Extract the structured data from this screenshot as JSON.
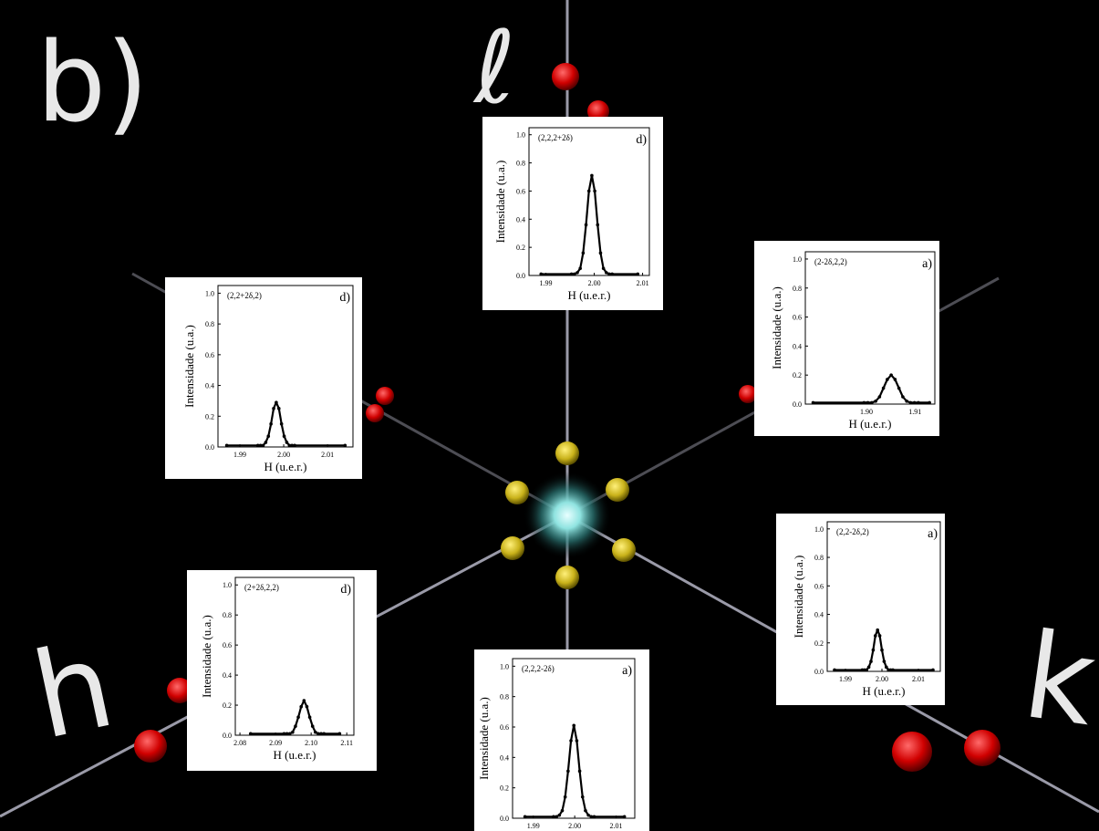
{
  "panel_label": "b)",
  "axis_labels": {
    "l": "ℓ",
    "h": "h",
    "k": "k"
  },
  "chart_data": [
    {
      "type": "line",
      "title": "(2,2,2+2δ)",
      "corner_label": "d)",
      "xlabel": "H (u.e.r.)",
      "ylabel": "Intensidade (u.a.)",
      "color": "#000000",
      "x": [
        1.989,
        1.9953,
        1.9959,
        1.9965,
        1.9971,
        1.9977,
        1.9983,
        1.9989,
        1.9995,
        2.0001,
        2.0007,
        2.0013,
        2.0019,
        2.0025,
        2.0031,
        2.0037,
        2.009
      ],
      "values": [
        0.01,
        0.01,
        0.01,
        0.02,
        0.05,
        0.16,
        0.36,
        0.6,
        0.71,
        0.6,
        0.36,
        0.16,
        0.05,
        0.02,
        0.01,
        0.01,
        0.01
      ],
      "xlim": [
        1.9865,
        2.0114
      ],
      "ylim": [
        0,
        1.05
      ],
      "xticks": [
        1.99,
        {
          "value": 2,
          "label": "2.00"
        },
        2.01
      ],
      "yticks": [
        {
          "value": 0,
          "label": "0.0"
        },
        0.2,
        0.4,
        0.6,
        0.8,
        {
          "value": 1,
          "label": "1.0"
        }
      ]
    },
    {
      "type": "line",
      "title": "(2-2δ,2,2)",
      "corner_label": "a)",
      "xlabel": "H (u.e.r.)",
      "ylabel": "Intensidade (u.a.)",
      "color": "#000000",
      "x": [
        1.889,
        1.8995,
        1.9003,
        1.9011,
        1.9019,
        1.9027,
        1.9035,
        1.9043,
        1.9051,
        1.9059,
        1.9067,
        1.9075,
        1.9083,
        1.9091,
        1.9099,
        1.9107,
        1.913
      ],
      "values": [
        0.01,
        0.01,
        0.01,
        0.01,
        0.02,
        0.05,
        0.11,
        0.17,
        0.2,
        0.17,
        0.11,
        0.05,
        0.02,
        0.01,
        0.01,
        0.01,
        0.01
      ],
      "xlim": [
        1.8874,
        1.9141
      ],
      "ylim": [
        0,
        1.05
      ],
      "xticks": [
        {
          "value": 1.9,
          "label": "1.90"
        },
        1.91
      ],
      "yticks": [
        {
          "value": 0,
          "label": "0.0"
        },
        0.2,
        0.4,
        0.6,
        0.8,
        {
          "value": 1,
          "label": "1.0"
        }
      ]
    },
    {
      "type": "line",
      "title": "(2,2+2δ,2)",
      "corner_label": "d)",
      "xlabel": "H (u.e.r.)",
      "ylabel": "Intensidade (u.a.)",
      "color": "#000000",
      "x": [
        1.987,
        1.9941,
        1.9947,
        1.9953,
        1.9959,
        1.9965,
        1.9971,
        1.9977,
        1.9983,
        1.9989,
        1.9995,
        2.0001,
        2.0007,
        2.0013,
        2.0019,
        2.0025,
        2.014
      ],
      "values": [
        0.01,
        0.01,
        0.01,
        0.01,
        0.03,
        0.07,
        0.15,
        0.25,
        0.29,
        0.25,
        0.15,
        0.07,
        0.03,
        0.01,
        0.01,
        0.01,
        0.01
      ],
      "xlim": [
        1.985,
        2.0158
      ],
      "ylim": [
        0,
        1.05
      ],
      "xticks": [
        1.99,
        {
          "value": 2,
          "label": "2.00"
        },
        2.01
      ],
      "yticks": [
        {
          "value": 0,
          "label": "0.0"
        },
        0.2,
        0.4,
        0.6,
        0.8,
        {
          "value": 1,
          "label": "1.0"
        }
      ]
    },
    {
      "type": "line",
      "title": "(2,2-2δ,2)",
      "corner_label": "a)",
      "xlabel": "H (u.e.r.)",
      "ylabel": "Intensidade (u.a.)",
      "color": "#000000",
      "x": [
        1.987,
        1.9946,
        1.9952,
        1.9958,
        1.9964,
        1.997,
        1.9976,
        1.9982,
        1.9988,
        1.9994,
        2.0,
        2.0006,
        2.0012,
        2.0018,
        2.0024,
        2.003,
        2.014
      ],
      "values": [
        0.01,
        0.01,
        0.01,
        0.01,
        0.03,
        0.07,
        0.15,
        0.25,
        0.29,
        0.25,
        0.15,
        0.07,
        0.03,
        0.01,
        0.01,
        0.01,
        0.01
      ],
      "xlim": [
        1.985,
        2.016
      ],
      "ylim": [
        0,
        1.05
      ],
      "xticks": [
        1.99,
        {
          "value": 2,
          "label": "2.00"
        },
        2.01
      ],
      "yticks": [
        {
          "value": 0,
          "label": "0.0"
        },
        0.2,
        0.4,
        0.6,
        0.8,
        {
          "value": 1,
          "label": "1.0"
        }
      ]
    },
    {
      "type": "line",
      "title": "(2+2δ,2,2)",
      "corner_label": "d)",
      "xlabel": "H (u.e.r.)",
      "ylabel": "Intensidade (u.a.)",
      "color": "#000000",
      "x": [
        2.083,
        2.0924,
        2.0932,
        2.094,
        2.0948,
        2.0956,
        2.0964,
        2.0972,
        2.098,
        2.0988,
        2.0996,
        2.1004,
        2.1012,
        2.102,
        2.1028,
        2.1036,
        2.108
      ],
      "values": [
        0.01,
        0.01,
        0.01,
        0.01,
        0.02,
        0.06,
        0.12,
        0.19,
        0.23,
        0.19,
        0.12,
        0.06,
        0.02,
        0.01,
        0.01,
        0.01,
        0.01
      ],
      "xlim": [
        2.0787,
        2.112
      ],
      "ylim": [
        0,
        1.05
      ],
      "xticks": [
        2.08,
        2.09,
        {
          "value": 2.1,
          "label": "2.10"
        },
        2.11
      ],
      "yticks": [
        {
          "value": 0,
          "label": "0.0"
        },
        0.2,
        0.4,
        0.6,
        0.8,
        {
          "value": 1,
          "label": "1.0"
        }
      ]
    },
    {
      "type": "line",
      "title": "(2,2,2-2δ)",
      "corner_label": "a)",
      "xlabel": "H (u.e.r.)",
      "ylabel": "Intensidade (u.a.)",
      "color": "#000000",
      "x": [
        1.988,
        1.9949,
        1.9956,
        1.9963,
        1.997,
        1.9977,
        1.9984,
        1.9991,
        1.9998,
        2.0005,
        2.0012,
        2.0019,
        2.0026,
        2.0033,
        2.004,
        2.0047,
        2.012
      ],
      "values": [
        0.01,
        0.01,
        0.01,
        0.02,
        0.05,
        0.14,
        0.31,
        0.51,
        0.61,
        0.51,
        0.31,
        0.14,
        0.05,
        0.02,
        0.01,
        0.01,
        0.01
      ],
      "xlim": [
        1.985,
        2.0145
      ],
      "ylim": [
        0,
        1.05
      ],
      "xticks": [
        1.99,
        {
          "value": 2,
          "label": "2.00"
        },
        2.01
      ],
      "yticks": [
        {
          "value": 0,
          "label": "0.0"
        },
        0.2,
        0.4,
        0.6,
        0.8,
        {
          "value": 1,
          "label": "1.0"
        }
      ]
    }
  ]
}
